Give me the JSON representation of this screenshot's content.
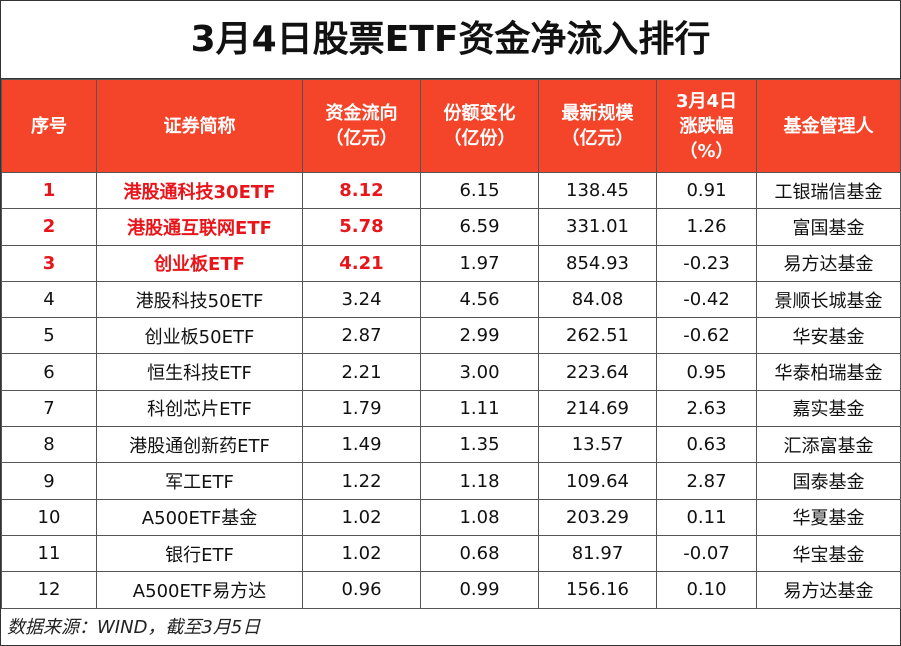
{
  "title": "3月4日股票ETF资金净流入排行",
  "headers": [
    {
      "l1": "序号"
    },
    {
      "l1": "证券简称"
    },
    {
      "l1": "资金流向",
      "l2": "（亿元）"
    },
    {
      "l1": "份额变化",
      "l2": "（亿份）"
    },
    {
      "l1": "最新规模",
      "l2": "（亿元）"
    },
    {
      "l1": "3月4日",
      "l2": "涨跌幅",
      "l3": "（%）"
    },
    {
      "l1": "基金管理人"
    }
  ],
  "rows": [
    {
      "rank": "1",
      "name": "港股通科技30ETF",
      "flow": "8.12",
      "share": "6.15",
      "scale": "138.45",
      "change": "0.91",
      "manager": "工银瑞信基金",
      "highlight": true
    },
    {
      "rank": "2",
      "name": "港股通互联网ETF",
      "flow": "5.78",
      "share": "6.59",
      "scale": "331.01",
      "change": "1.26",
      "manager": "富国基金",
      "highlight": true
    },
    {
      "rank": "3",
      "name": "创业板ETF",
      "flow": "4.21",
      "share": "1.97",
      "scale": "854.93",
      "change": "-0.23",
      "manager": "易方达基金",
      "highlight": true
    },
    {
      "rank": "4",
      "name": "港股科技50ETF",
      "flow": "3.24",
      "share": "4.56",
      "scale": "84.08",
      "change": "-0.42",
      "manager": "景顺长城基金",
      "highlight": false
    },
    {
      "rank": "5",
      "name": "创业板50ETF",
      "flow": "2.87",
      "share": "2.99",
      "scale": "262.51",
      "change": "-0.62",
      "manager": "华安基金",
      "highlight": false
    },
    {
      "rank": "6",
      "name": "恒生科技ETF",
      "flow": "2.21",
      "share": "3.00",
      "scale": "223.64",
      "change": "0.95",
      "manager": "华泰柏瑞基金",
      "highlight": false
    },
    {
      "rank": "7",
      "name": "科创芯片ETF",
      "flow": "1.79",
      "share": "1.11",
      "scale": "214.69",
      "change": "2.63",
      "manager": "嘉实基金",
      "highlight": false
    },
    {
      "rank": "8",
      "name": "港股通创新药ETF",
      "flow": "1.49",
      "share": "1.35",
      "scale": "13.57",
      "change": "0.63",
      "manager": "汇添富基金",
      "highlight": false
    },
    {
      "rank": "9",
      "name": "军工ETF",
      "flow": "1.22",
      "share": "1.18",
      "scale": "109.64",
      "change": "2.87",
      "manager": "国泰基金",
      "highlight": false
    },
    {
      "rank": "10",
      "name": "A500ETF基金",
      "flow": "1.02",
      "share": "1.08",
      "scale": "203.29",
      "change": "0.11",
      "manager": "华夏基金",
      "highlight": false
    },
    {
      "rank": "11",
      "name": "银行ETF",
      "flow": "1.02",
      "share": "0.68",
      "scale": "81.97",
      "change": "-0.07",
      "manager": "华宝基金",
      "highlight": false
    },
    {
      "rank": "12",
      "name": "A500ETF易方达",
      "flow": "0.96",
      "share": "0.99",
      "scale": "156.16",
      "change": "0.10",
      "manager": "易方达基金",
      "highlight": false
    }
  ],
  "footer": "数据来源：WIND，截至3月5日",
  "colors": {
    "header_bg": "#f4452b",
    "highlight_text": "#e8151b"
  }
}
